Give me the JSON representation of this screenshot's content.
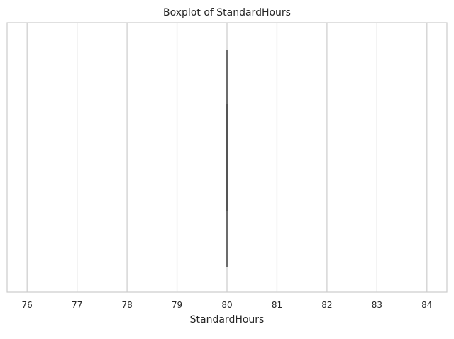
{
  "chart_data": {
    "type": "boxplot",
    "title": "Boxplot of StandardHours",
    "xlabel": "StandardHours",
    "ylabel": "",
    "orientation": "horizontal",
    "xlim": [
      75.6,
      84.4
    ],
    "xticks": [
      76,
      77,
      78,
      79,
      80,
      81,
      82,
      83,
      84
    ],
    "grid": "vertical",
    "box": {
      "min": 80,
      "q1": 80,
      "median": 80,
      "q3": 80,
      "max": 80
    }
  }
}
